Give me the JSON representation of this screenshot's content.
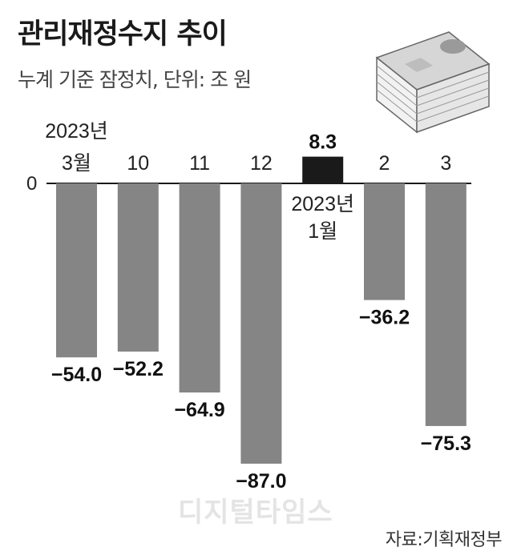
{
  "header": {
    "title": "관리재정수지 추이",
    "subtitle": "누계 기준 잠정치, 단위: 조 원"
  },
  "footer": {
    "source": "자료:기획재정부",
    "watermark": "디지털타임스"
  },
  "colors": {
    "negative_bar": "#858585",
    "positive_bar": "#1a1a1a",
    "baseline": "#1a1a1a"
  },
  "chart_data": {
    "type": "bar",
    "title": "관리재정수지 추이",
    "subtitle": "누계 기준 잠정치, 단위: 조 원",
    "categories": [
      {
        "line1": "2023년",
        "line2": "3월"
      },
      {
        "line1": "10",
        "line2": ""
      },
      {
        "line1": "11",
        "line2": ""
      },
      {
        "line1": "12",
        "line2": ""
      },
      {
        "line1": "2023년",
        "line2": "1월"
      },
      {
        "line1": "2",
        "line2": ""
      },
      {
        "line1": "3",
        "line2": ""
      }
    ],
    "values": [
      -54.0,
      -52.2,
      -64.9,
      -87.0,
      8.3,
      -36.2,
      -75.3
    ],
    "value_labels": [
      "−54.0",
      "−52.2",
      "−64.9",
      "−87.0",
      "8.3",
      "−36.2",
      "−75.3"
    ],
    "zero_label": "0",
    "ylim": [
      -87.0,
      8.3
    ],
    "grid": false,
    "legend": "none"
  }
}
